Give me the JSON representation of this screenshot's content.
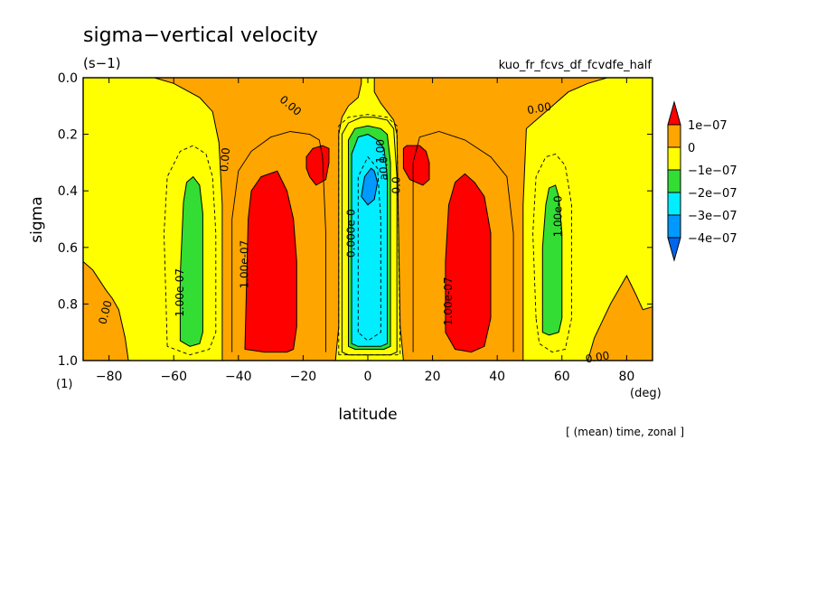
{
  "chart_data": {
    "type": "heatmap",
    "title": "sigma−vertical velocity",
    "units": "(s−1)",
    "experiment": "kuo_fr_fcvs_df_fcvdfe_half",
    "xlabel": "latitude",
    "xunits": "(deg)",
    "ylabel": "sigma",
    "yunits": "(1)",
    "footnote": "[ (mean) time, zonal ]",
    "xlim": [
      -88,
      88
    ],
    "ylim": [
      1.0,
      0.0
    ],
    "y_inverted": true,
    "x_ticks": [
      -80,
      -60,
      -40,
      -20,
      0,
      20,
      40,
      60,
      80
    ],
    "x_tick_labels": [
      "−80",
      "−60",
      "−40",
      "−20",
      "0",
      "20",
      "40",
      "60",
      "80"
    ],
    "y_ticks": [
      0.0,
      0.2,
      0.4,
      0.6,
      0.8,
      1.0
    ],
    "y_tick_labels": [
      "0.0",
      "0.2",
      "0.4",
      "0.6",
      "0.8",
      "1.0"
    ],
    "colorbar": {
      "levels": [
        1e-07,
        0,
        -1e-07,
        -2e-07,
        -3e-07,
        -4e-07
      ],
      "labels": [
        "1e−07",
        "0",
        "−1e−07",
        "−2e−07",
        "−3e−07",
        "−4e−07"
      ],
      "colors": [
        "#ff0000",
        "#ffa500",
        "#ffff00",
        "#33dd33",
        "#00eeff",
        "#0099ff",
        "#0066ee"
      ]
    },
    "contour_labels": [
      {
        "text": "0.00",
        "x": -81,
        "y": 0.83,
        "rot": -75
      },
      {
        "text": "1.00e-07",
        "x": -58,
        "y": 0.76,
        "rot": -90
      },
      {
        "text": "0.00",
        "x": -44,
        "y": 0.29,
        "rot": -85
      },
      {
        "text": "1.00e-07",
        "x": -38,
        "y": 0.66,
        "rot": -90
      },
      {
        "text": "0.00",
        "x": -24,
        "y": 0.1,
        "rot": 40
      },
      {
        "text": "0.000e-0",
        "x": -5,
        "y": 0.55,
        "rot": -90
      },
      {
        "text": "1.00",
        "x": 4,
        "y": 0.26,
        "rot": -90
      },
      {
        "text": "a0.0",
        "x": 5,
        "y": 0.32,
        "rot": -90
      },
      {
        "text": "0.0",
        "x": 9,
        "y": 0.38,
        "rot": -90
      },
      {
        "text": "1.00e-07",
        "x": 25,
        "y": 0.79,
        "rot": -90
      },
      {
        "text": "0.00",
        "x": 53,
        "y": 0.11,
        "rot": -10
      },
      {
        "text": "1.00e-0",
        "x": 59,
        "y": 0.49,
        "rot": -90
      },
      {
        "text": "0.00",
        "x": 71,
        "y": 0.99,
        "rot": -10
      }
    ],
    "regions": [
      {
        "name": "positive",
        "color": "#ffa500",
        "level": 0,
        "polygons": [
          [
            [
              -88,
              0.65
            ],
            [
              -85,
              0.68
            ],
            [
              -81,
              0.75
            ],
            [
              -79,
              0.78
            ],
            [
              -77,
              0.82
            ],
            [
              -75,
              0.92
            ],
            [
              -74,
              1.0
            ],
            [
              -88,
              1.0
            ]
          ],
          [
            [
              -66,
              0
            ],
            [
              -60,
              0.02
            ],
            [
              -52,
              0.07
            ],
            [
              -48,
              0.12
            ],
            [
              -46,
              0.23
            ],
            [
              -45,
              0.45
            ],
            [
              -45,
              1.0
            ],
            [
              -10,
              1.0
            ],
            [
              -9,
              0.88
            ],
            [
              -9,
              0.2
            ],
            [
              -8,
              0.14
            ],
            [
              -6,
              0.1
            ],
            [
              -3,
              0.07
            ],
            [
              -2,
              0.02
            ],
            [
              -2,
              0
            ]
          ],
          [
            [
              2,
              0
            ],
            [
              2,
              0.05
            ],
            [
              4,
              0.09
            ],
            [
              6,
              0.12
            ],
            [
              8,
              0.15
            ],
            [
              9,
              0.2
            ],
            [
              10,
              0.88
            ],
            [
              11,
              1.0
            ],
            [
              48,
              1.0
            ],
            [
              48,
              0.45
            ],
            [
              49,
              0.18
            ],
            [
              55,
              0.12
            ],
            [
              62,
              0.05
            ],
            [
              68,
              0.02
            ],
            [
              74,
              0
            ]
          ],
          [
            [
              68,
              1.0
            ],
            [
              70,
              0.92
            ],
            [
              75,
              0.8
            ],
            [
              80,
              0.7
            ],
            [
              83,
              0.77
            ],
            [
              85,
              0.82
            ],
            [
              88,
              0.81
            ],
            [
              88,
              1.0
            ]
          ]
        ]
      },
      {
        "name": "above-1e-07",
        "color": "#ff0000",
        "level": 1e-07,
        "polygons": [
          [
            [
              -38,
              0.96
            ],
            [
              -37,
              0.5
            ],
            [
              -36,
              0.4
            ],
            [
              -33,
              0.35
            ],
            [
              -28,
              0.33
            ],
            [
              -25,
              0.4
            ],
            [
              -23,
              0.5
            ],
            [
              -22,
              0.65
            ],
            [
              -22,
              0.88
            ],
            [
              -23,
              0.96
            ],
            [
              -25,
              0.97
            ],
            [
              -32,
              0.97
            ]
          ],
          [
            [
              -19,
              0.28
            ],
            [
              -17,
              0.25
            ],
            [
              -14,
              0.24
            ],
            [
              -12,
              0.25
            ],
            [
              -12,
              0.3
            ],
            [
              -13,
              0.36
            ],
            [
              -16,
              0.38
            ],
            [
              -18,
              0.35
            ],
            [
              -19,
              0.32
            ]
          ],
          [
            [
              11,
              0.25
            ],
            [
              12,
              0.24
            ],
            [
              16,
              0.24
            ],
            [
              18,
              0.26
            ],
            [
              19,
              0.3
            ],
            [
              19,
              0.36
            ],
            [
              17,
              0.38
            ],
            [
              13,
              0.36
            ],
            [
              11,
              0.32
            ]
          ],
          [
            [
              24,
              0.9
            ],
            [
              24,
              0.65
            ],
            [
              25,
              0.45
            ],
            [
              27,
              0.37
            ],
            [
              30,
              0.34
            ],
            [
              33,
              0.37
            ],
            [
              36,
              0.42
            ],
            [
              38,
              0.55
            ],
            [
              38,
              0.85
            ],
            [
              36,
              0.95
            ],
            [
              32,
              0.97
            ],
            [
              27,
              0.96
            ]
          ]
        ]
      },
      {
        "name": "below-0",
        "color": "#ffff00",
        "level": 0,
        "polygons": [
          [
            [
              -8,
              0.97
            ],
            [
              -8,
              0.2
            ],
            [
              -6,
              0.16
            ],
            [
              -2,
              0.14
            ],
            [
              2,
              0.14
            ],
            [
              6,
              0.15
            ],
            [
              8,
              0.18
            ],
            [
              9,
              0.35
            ],
            [
              9,
              0.97
            ],
            [
              7,
              0.98
            ],
            [
              -6,
              0.98
            ]
          ]
        ]
      },
      {
        "name": "below--1e-07",
        "color": "#33dd33",
        "level": -1e-07,
        "polygons": [
          [
            [
              -58,
              0.7
            ],
            [
              -57,
              0.44
            ],
            [
              -56,
              0.37
            ],
            [
              -54,
              0.35
            ],
            [
              -52,
              0.38
            ],
            [
              -51,
              0.48
            ],
            [
              -51,
              0.9
            ],
            [
              -52,
              0.94
            ],
            [
              -55,
              0.95
            ],
            [
              -58,
              0.93
            ]
          ],
          [
            [
              -6,
              0.95
            ],
            [
              -6,
              0.22
            ],
            [
              -4,
              0.18
            ],
            [
              0,
              0.17
            ],
            [
              4,
              0.18
            ],
            [
              6,
              0.2
            ],
            [
              7,
              0.3
            ],
            [
              7,
              0.95
            ],
            [
              5,
              0.96
            ],
            [
              -4,
              0.96
            ]
          ],
          [
            [
              54,
              0.9
            ],
            [
              54,
              0.6
            ],
            [
              55,
              0.45
            ],
            [
              56,
              0.39
            ],
            [
              58,
              0.38
            ],
            [
              59,
              0.42
            ],
            [
              60,
              0.55
            ],
            [
              60,
              0.85
            ],
            [
              59,
              0.9
            ],
            [
              56,
              0.91
            ]
          ]
        ]
      },
      {
        "name": "below--2e-07",
        "color": "#00eeff",
        "level": -2e-07,
        "polygons": [
          [
            [
              -5,
              0.94
            ],
            [
              -5,
              0.27
            ],
            [
              -3,
              0.21
            ],
            [
              0,
              0.2
            ],
            [
              3,
              0.22
            ],
            [
              5,
              0.25
            ],
            [
              6,
              0.35
            ],
            [
              6,
              0.94
            ],
            [
              4,
              0.95
            ],
            [
              -3,
              0.95
            ]
          ]
        ]
      },
      {
        "name": "below--3e-07",
        "color": "#0099ff",
        "level": -3e-07,
        "polygons": [
          [
            [
              -2,
              0.42
            ],
            [
              -1,
              0.35
            ],
            [
              1,
              0.32
            ],
            [
              2,
              0.33
            ],
            [
              3,
              0.37
            ],
            [
              2,
              0.43
            ],
            [
              0,
              0.45
            ]
          ]
        ]
      }
    ],
    "contour_lines": [
      {
        "style": "dashed",
        "points": [
          [
            -62,
            0.95
          ],
          [
            -63,
            0.55
          ],
          [
            -62,
            0.35
          ],
          [
            -58,
            0.26
          ],
          [
            -54,
            0.24
          ],
          [
            -50,
            0.27
          ],
          [
            -48,
            0.35
          ],
          [
            -47,
            0.55
          ],
          [
            -47,
            0.9
          ],
          [
            -49,
            0.96
          ],
          [
            -55,
            0.98
          ],
          [
            -62,
            0.95
          ]
        ]
      },
      {
        "style": "dashed",
        "points": [
          [
            52,
            0.85
          ],
          [
            51,
            0.55
          ],
          [
            52,
            0.35
          ],
          [
            55,
            0.28
          ],
          [
            58,
            0.27
          ],
          [
            61,
            0.31
          ],
          [
            63,
            0.45
          ],
          [
            63,
            0.85
          ],
          [
            61,
            0.96
          ],
          [
            57,
            0.97
          ],
          [
            53,
            0.94
          ],
          [
            52,
            0.85
          ]
        ]
      },
      {
        "style": "solid",
        "points": [
          [
            -42,
            0.97
          ],
          [
            -42,
            0.5
          ],
          [
            -40,
            0.33
          ],
          [
            -36,
            0.26
          ],
          [
            -30,
            0.21
          ],
          [
            -24,
            0.19
          ],
          [
            -18,
            0.2
          ],
          [
            -15,
            0.22
          ],
          [
            -14,
            0.28
          ],
          [
            -13,
            0.55
          ],
          [
            -13,
            0.97
          ]
        ]
      },
      {
        "style": "solid",
        "points": [
          [
            14,
            0.97
          ],
          [
            14,
            0.3
          ],
          [
            16,
            0.21
          ],
          [
            22,
            0.19
          ],
          [
            30,
            0.22
          ],
          [
            38,
            0.28
          ],
          [
            43,
            0.35
          ],
          [
            45,
            0.55
          ],
          [
            45,
            0.97
          ]
        ]
      },
      {
        "style": "dashed",
        "points": [
          [
            -9,
            0.98
          ],
          [
            -9,
            0.17
          ],
          [
            -6,
            0.14
          ],
          [
            0,
            0.13
          ],
          [
            6,
            0.14
          ],
          [
            9,
            0.17
          ],
          [
            10,
            0.98
          ],
          [
            -9,
            0.98
          ]
        ]
      },
      {
        "style": "dashed",
        "points": [
          [
            -3,
            0.9
          ],
          [
            -3,
            0.35
          ],
          [
            0,
            0.28
          ],
          [
            3,
            0.32
          ],
          [
            4,
            0.5
          ],
          [
            4,
            0.9
          ],
          [
            0,
            0.93
          ],
          [
            -3,
            0.9
          ]
        ]
      }
    ]
  }
}
